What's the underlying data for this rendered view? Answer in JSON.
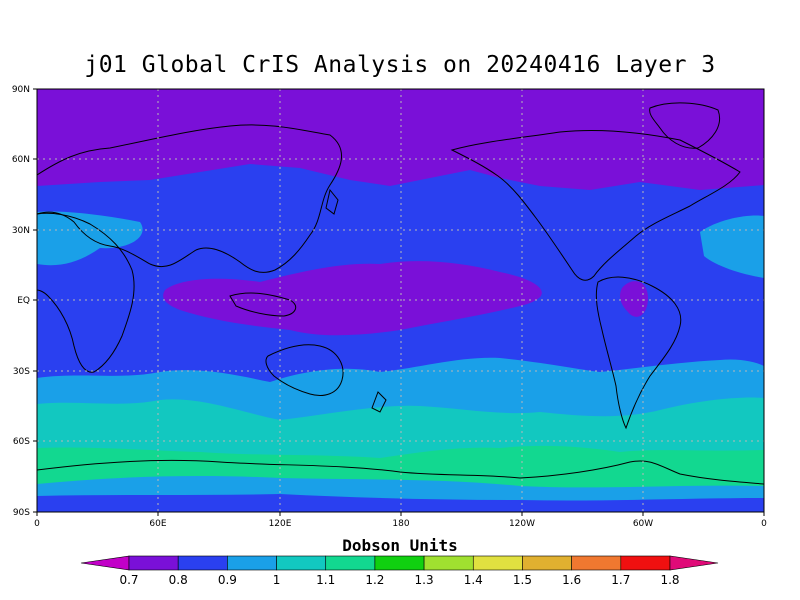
{
  "title": "j01 Global CrIS Analysis on 20240416 Layer 3",
  "colorbar": {
    "title": "Dobson Units",
    "levels": [
      "0.7",
      "0.8",
      "0.9",
      "1",
      "1.1",
      "1.2",
      "1.3",
      "1.4",
      "1.5",
      "1.6",
      "1.7",
      "1.8"
    ],
    "low_color": "#c200c8",
    "colors": [
      "#7a10d8",
      "#2a40f0",
      "#1aa0e8",
      "#12c8c0",
      "#12d890",
      "#10d010",
      "#a0e030",
      "#e0e040",
      "#e0b030",
      "#f07830",
      "#f01010"
    ],
    "high_color": "#e00a78"
  },
  "chart_data": {
    "type": "heatmap",
    "title": "j01 Global CrIS Analysis on 20240416 Layer 3",
    "x_ticks": [
      "0",
      "60E",
      "120E",
      "180",
      "120W",
      "60W",
      "0"
    ],
    "y_ticks": [
      "90N",
      "60N",
      "30N",
      "EQ",
      "30S",
      "60S",
      "90S"
    ],
    "x_range_deg_east": [
      0,
      360
    ],
    "y_range_deg": [
      -90,
      90
    ],
    "colorbar_label": "Dobson Units",
    "grid": true,
    "field_regions": [
      {
        "region": "northern high latitudes",
        "lat": [
          60,
          90
        ],
        "value_du": 0.75
      },
      {
        "region": "northern mid latitudes",
        "lat": [
          30,
          60
        ],
        "value_du": 0.85
      },
      {
        "region": "tropics",
        "lat": [
          -20,
          30
        ],
        "value_du": 0.85
      },
      {
        "region": "tropical western Pacific",
        "lat": [
          -10,
          15
        ],
        "lon_east": [
          40,
          240
        ],
        "value_du": 0.75
      },
      {
        "region": "southern subtropics",
        "lat": [
          -40,
          -20
        ],
        "value_du": 0.95
      },
      {
        "region": "southern high latitudes band",
        "lat": [
          -70,
          -50
        ],
        "value_du": 1.05
      },
      {
        "region": "near Antarctica",
        "lat": [
          -80,
          -65
        ],
        "value_du": 1.15
      }
    ]
  }
}
